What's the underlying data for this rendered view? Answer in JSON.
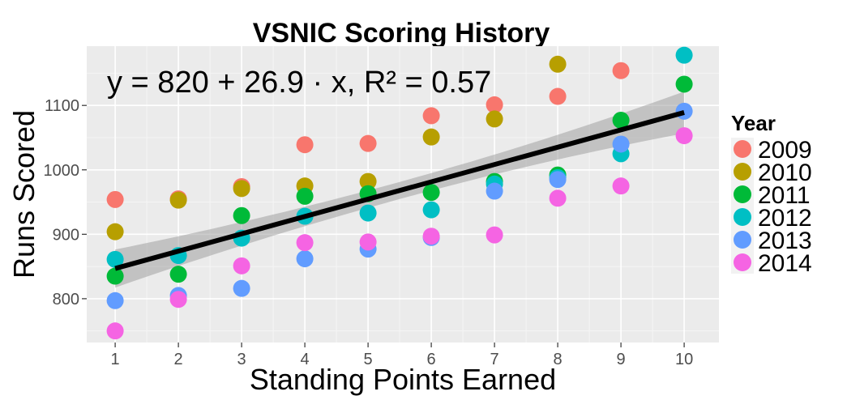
{
  "chart_data": {
    "type": "scatter",
    "title": "VSNIC Scoring History",
    "xlabel": "Standing Points Earned",
    "ylabel": "Runs Scored",
    "xlim": [
      0.55,
      10.55
    ],
    "ylim": [
      732,
      1192
    ],
    "xticks": [
      "1",
      "2",
      "3",
      "4",
      "5",
      "6",
      "7",
      "8",
      "9",
      "10"
    ],
    "yticks": [
      "800",
      "900",
      "1000",
      "1100"
    ],
    "grid": true,
    "legend": {
      "title": "Year",
      "position": "right"
    },
    "annotation": "y = 820 + 26.9 · x,  R² = 0.57",
    "regression": {
      "intercept": 820,
      "slope": 26.9,
      "x_range": [
        1,
        10
      ],
      "ci_low_at_min": 817,
      "ci_high_at_min": 876,
      "ci_low_at_max": 1055,
      "ci_high_at_max": 1120
    },
    "series": [
      {
        "name": "2009",
        "color": "#F8766D",
        "x": [
          1,
          2,
          3,
          4,
          5,
          6,
          7,
          8,
          9
        ],
        "y": [
          954,
          955,
          974,
          1039,
          1041,
          1084,
          1101,
          1114,
          1154
        ]
      },
      {
        "name": "2010",
        "color": "#B79F00",
        "x": [
          1,
          2,
          3,
          4,
          5,
          6,
          7,
          8
        ],
        "y": [
          904,
          953,
          971,
          975,
          982,
          1051,
          1079,
          1164
        ]
      },
      {
        "name": "2011",
        "color": "#00BA38",
        "x": [
          1,
          2,
          3,
          4,
          5,
          6,
          7,
          8,
          9,
          10
        ],
        "y": [
          835,
          838,
          929,
          959,
          963,
          965,
          982,
          992,
          1077,
          1133
        ]
      },
      {
        "name": "2012",
        "color": "#00BFC4",
        "x": [
          1,
          2,
          3,
          4,
          5,
          6,
          7,
          8,
          9,
          10
        ],
        "y": [
          861,
          867,
          894,
          928,
          933,
          938,
          978,
          988,
          1025,
          1178
        ]
      },
      {
        "name": "2013",
        "color": "#619CFF",
        "x": [
          1,
          2,
          3,
          4,
          5,
          6,
          7,
          8,
          9,
          10
        ],
        "y": [
          797,
          805,
          816,
          862,
          877,
          895,
          967,
          985,
          1040,
          1091
        ]
      },
      {
        "name": "2014",
        "color": "#F564E3",
        "x": [
          1,
          2,
          3,
          4,
          5,
          6,
          7,
          8,
          9,
          10
        ],
        "y": [
          750,
          799,
          851,
          887,
          888,
          897,
          899,
          956,
          975,
          1053
        ]
      }
    ]
  }
}
